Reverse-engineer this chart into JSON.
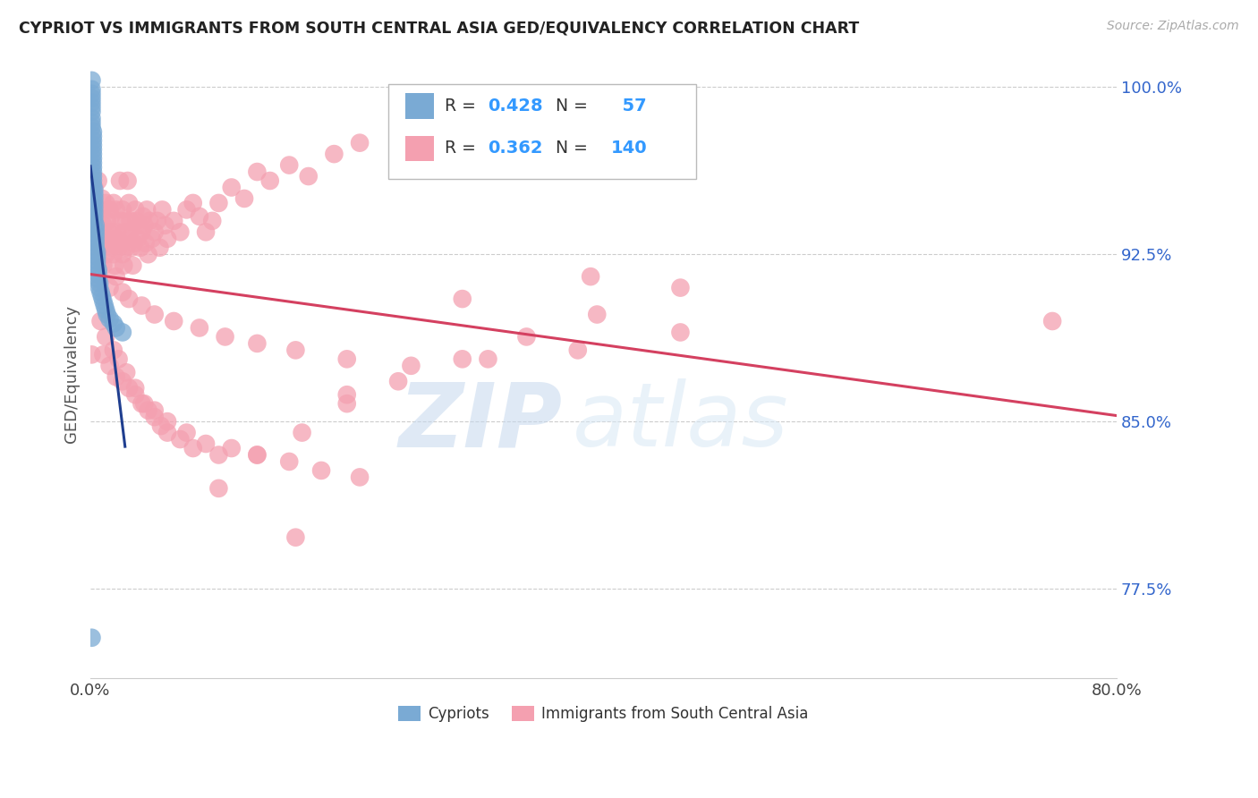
{
  "title": "CYPRIOT VS IMMIGRANTS FROM SOUTH CENTRAL ASIA GED/EQUIVALENCY CORRELATION CHART",
  "source": "Source: ZipAtlas.com",
  "ylabel": "GED/Equivalency",
  "xmin": 0.0,
  "xmax": 0.8,
  "ymin": 0.735,
  "ymax": 1.008,
  "ytick_positions": [
    0.775,
    0.85,
    0.925,
    1.0
  ],
  "ytick_labels": [
    "77.5%",
    "85.0%",
    "92.5%",
    "100.0%"
  ],
  "xtick_positions": [
    0.0,
    0.1,
    0.2,
    0.3,
    0.4,
    0.5,
    0.6,
    0.7,
    0.8
  ],
  "xtick_labels": [
    "0.0%",
    "",
    "",
    "",
    "",
    "",
    "",
    "",
    "80.0%"
  ],
  "blue_R": 0.428,
  "blue_N": 57,
  "pink_R": 0.362,
  "pink_N": 140,
  "blue_color": "#7aaad4",
  "pink_color": "#f4a0b0",
  "blue_line_color": "#1f3e8f",
  "pink_line_color": "#d44060",
  "blue_label": "Cypriots",
  "pink_label": "Immigrants from South Central Asia",
  "watermark_zip": "ZIP",
  "watermark_atlas": "atlas",
  "background_color": "#ffffff",
  "grid_color": "#cccccc",
  "blue_x": [
    0.001,
    0.001,
    0.001,
    0.001,
    0.001,
    0.001,
    0.001,
    0.001,
    0.001,
    0.001,
    0.002,
    0.002,
    0.002,
    0.002,
    0.002,
    0.002,
    0.002,
    0.002,
    0.002,
    0.002,
    0.002,
    0.002,
    0.002,
    0.003,
    0.003,
    0.003,
    0.003,
    0.003,
    0.003,
    0.003,
    0.003,
    0.004,
    0.004,
    0.004,
    0.004,
    0.004,
    0.004,
    0.005,
    0.005,
    0.005,
    0.005,
    0.006,
    0.006,
    0.006,
    0.007,
    0.007,
    0.008,
    0.009,
    0.01,
    0.011,
    0.012,
    0.013,
    0.015,
    0.018,
    0.02,
    0.025,
    0.001
  ],
  "blue_y": [
    1.003,
    0.999,
    0.997,
    0.995,
    0.993,
    0.991,
    0.989,
    0.986,
    0.984,
    0.982,
    0.98,
    0.978,
    0.976,
    0.974,
    0.972,
    0.97,
    0.968,
    0.966,
    0.964,
    0.962,
    0.96,
    0.958,
    0.956,
    0.954,
    0.952,
    0.95,
    0.948,
    0.946,
    0.944,
    0.942,
    0.94,
    0.938,
    0.936,
    0.934,
    0.932,
    0.93,
    0.928,
    0.926,
    0.924,
    0.922,
    0.92,
    0.918,
    0.916,
    0.914,
    0.912,
    0.91,
    0.908,
    0.906,
    0.904,
    0.902,
    0.9,
    0.898,
    0.896,
    0.894,
    0.892,
    0.89,
    0.753
  ],
  "pink_x": [
    0.001,
    0.003,
    0.005,
    0.006,
    0.007,
    0.008,
    0.008,
    0.009,
    0.01,
    0.01,
    0.011,
    0.012,
    0.012,
    0.013,
    0.014,
    0.015,
    0.015,
    0.016,
    0.016,
    0.017,
    0.018,
    0.018,
    0.019,
    0.02,
    0.02,
    0.021,
    0.022,
    0.023,
    0.024,
    0.024,
    0.025,
    0.025,
    0.026,
    0.027,
    0.028,
    0.028,
    0.029,
    0.03,
    0.03,
    0.031,
    0.031,
    0.032,
    0.033,
    0.034,
    0.035,
    0.036,
    0.037,
    0.038,
    0.039,
    0.04,
    0.041,
    0.042,
    0.043,
    0.044,
    0.045,
    0.046,
    0.048,
    0.05,
    0.052,
    0.054,
    0.056,
    0.058,
    0.06,
    0.065,
    0.07,
    0.075,
    0.08,
    0.085,
    0.09,
    0.095,
    0.1,
    0.11,
    0.12,
    0.13,
    0.14,
    0.155,
    0.17,
    0.19,
    0.21,
    0.24,
    0.01,
    0.015,
    0.02,
    0.025,
    0.03,
    0.035,
    0.04,
    0.045,
    0.05,
    0.055,
    0.06,
    0.07,
    0.08,
    0.1,
    0.008,
    0.012,
    0.018,
    0.022,
    0.028,
    0.035,
    0.042,
    0.05,
    0.06,
    0.075,
    0.09,
    0.11,
    0.13,
    0.155,
    0.18,
    0.21,
    0.015,
    0.02,
    0.025,
    0.03,
    0.04,
    0.05,
    0.065,
    0.085,
    0.105,
    0.13,
    0.16,
    0.2,
    0.25,
    0.31,
    0.38,
    0.46,
    0.39,
    0.29,
    0.16,
    0.2,
    0.1,
    0.13,
    0.165,
    0.2,
    0.24,
    0.29,
    0.34,
    0.395,
    0.46,
    0.75
  ],
  "pink_y": [
    0.88,
    0.955,
    0.94,
    0.958,
    0.935,
    0.928,
    0.945,
    0.95,
    0.938,
    0.92,
    0.932,
    0.925,
    0.948,
    0.94,
    0.935,
    0.93,
    0.945,
    0.928,
    0.942,
    0.935,
    0.948,
    0.925,
    0.92,
    0.932,
    0.945,
    0.935,
    0.928,
    0.958,
    0.94,
    0.93,
    0.925,
    0.945,
    0.92,
    0.935,
    0.928,
    0.94,
    0.958,
    0.932,
    0.948,
    0.935,
    0.94,
    0.928,
    0.92,
    0.93,
    0.945,
    0.94,
    0.932,
    0.938,
    0.928,
    0.935,
    0.942,
    0.938,
    0.93,
    0.945,
    0.925,
    0.94,
    0.932,
    0.935,
    0.94,
    0.928,
    0.945,
    0.938,
    0.932,
    0.94,
    0.935,
    0.945,
    0.948,
    0.942,
    0.935,
    0.94,
    0.948,
    0.955,
    0.95,
    0.962,
    0.958,
    0.965,
    0.96,
    0.97,
    0.975,
    0.98,
    0.88,
    0.875,
    0.87,
    0.868,
    0.865,
    0.862,
    0.858,
    0.855,
    0.852,
    0.848,
    0.845,
    0.842,
    0.838,
    0.835,
    0.895,
    0.888,
    0.882,
    0.878,
    0.872,
    0.865,
    0.858,
    0.855,
    0.85,
    0.845,
    0.84,
    0.838,
    0.835,
    0.832,
    0.828,
    0.825,
    0.91,
    0.915,
    0.908,
    0.905,
    0.902,
    0.898,
    0.895,
    0.892,
    0.888,
    0.885,
    0.882,
    0.878,
    0.875,
    0.878,
    0.882,
    0.89,
    0.915,
    0.905,
    0.798,
    0.862,
    0.82,
    0.835,
    0.845,
    0.858,
    0.868,
    0.878,
    0.888,
    0.898,
    0.91,
    0.895
  ]
}
